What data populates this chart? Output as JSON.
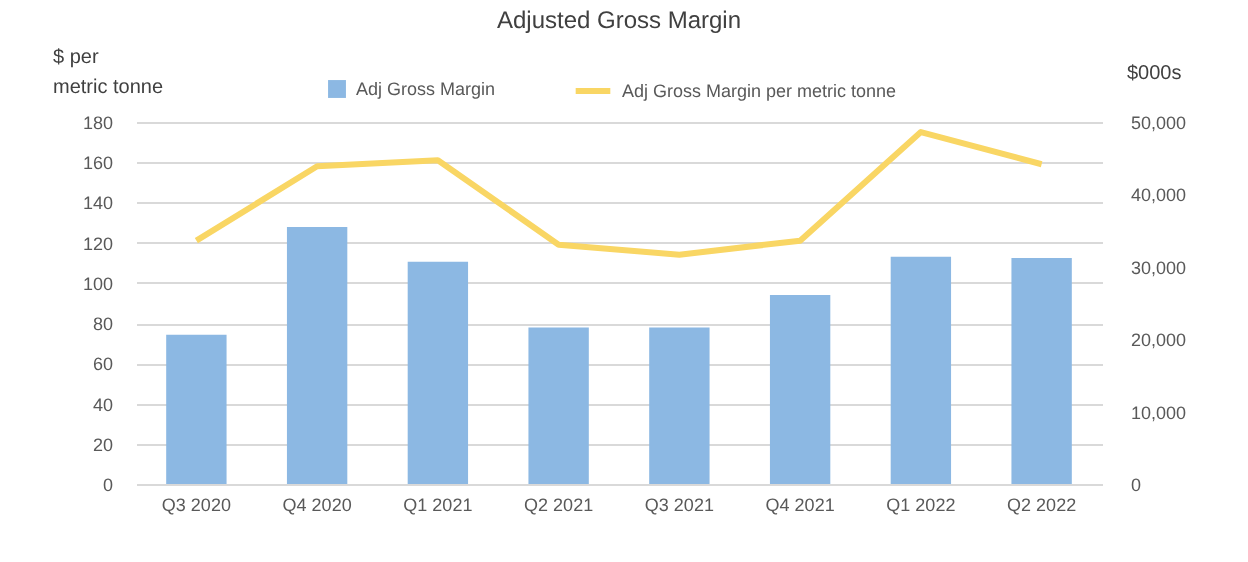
{
  "chart_data": {
    "type": "bar",
    "title": "Adjusted Gross Margin",
    "ylabel": "$ per metric tonne",
    "y2label": "$000s",
    "categories": [
      "Q3 2020",
      "Q4 2020",
      "Q1 2021",
      "Q2 2021",
      "Q3 2021",
      "Q4 2021",
      "Q1 2022",
      "Q2 2022"
    ],
    "series": [
      {
        "name": "Adj Gross Margin",
        "axis": "y2",
        "color": "#8cb8e3",
        "values": [
          20600,
          35500,
          30700,
          21600,
          21600,
          26100,
          31400,
          31200
        ]
      },
      {
        "name": "Adj Gross Margin per metric tonne",
        "type": "line",
        "color": "#f9d664",
        "values": [
          121,
          158,
          161,
          119,
          114,
          121,
          175,
          159
        ]
      }
    ],
    "ylim": [
      0,
      180
    ],
    "yticks": [
      0,
      20,
      40,
      60,
      80,
      100,
      120,
      140,
      160,
      180
    ],
    "y2lim": [
      0,
      50000
    ],
    "y2ticks": [
      {
        "value": 0,
        "label": "0"
      },
      {
        "value": 10000,
        "label": "10,000"
      },
      {
        "value": 20000,
        "label": "20,000"
      },
      {
        "value": 30000,
        "label": "30,000"
      },
      {
        "value": 40000,
        "label": "40,000"
      },
      {
        "value": 50000,
        "label": "50,000"
      }
    ],
    "grid": "y",
    "legend": "top",
    "marker": "none",
    "line_style": "solid"
  }
}
